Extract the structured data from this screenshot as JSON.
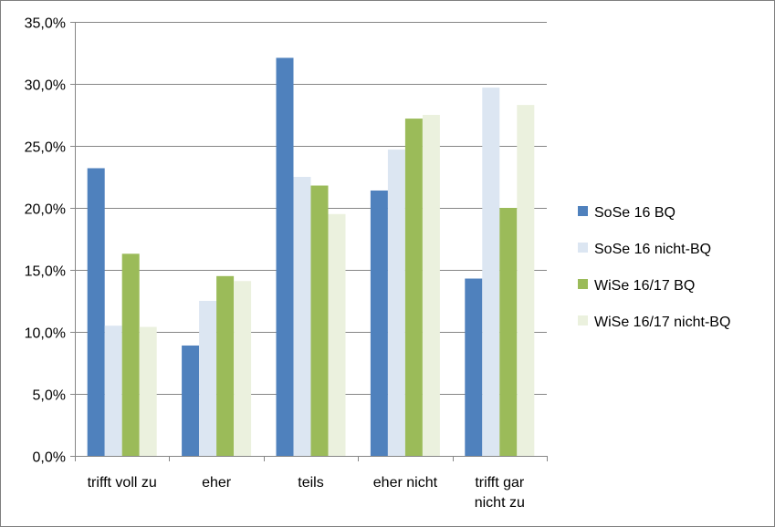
{
  "chart_data": {
    "type": "bar",
    "title": "",
    "xlabel": "",
    "ylabel": "",
    "categories": [
      "trifft voll zu",
      "eher",
      "teils",
      "eher nicht",
      "trifft gar nicht zu"
    ],
    "category_lines": [
      [
        "trifft voll zu"
      ],
      [
        "eher"
      ],
      [
        "teils"
      ],
      [
        "eher nicht"
      ],
      [
        "trifft gar",
        "nicht zu"
      ]
    ],
    "series": [
      {
        "name": "SoSe 16 BQ",
        "color": "#4f81bd",
        "values": [
          23.2,
          8.9,
          32.1,
          21.4,
          14.3
        ]
      },
      {
        "name": "SoSe 16 nicht-BQ",
        "color": "#dce6f2",
        "values": [
          10.5,
          12.5,
          22.5,
          24.7,
          29.7
        ]
      },
      {
        "name": "WiSe 16/17 BQ",
        "color": "#9bbb59",
        "values": [
          16.3,
          14.5,
          21.8,
          27.2,
          20.0
        ]
      },
      {
        "name": "WiSe 16/17 nicht-BQ",
        "color": "#ebf1de",
        "values": [
          10.4,
          14.1,
          19.5,
          27.5,
          28.3
        ]
      }
    ],
    "ylim": [
      0,
      35
    ],
    "yticks": [
      0,
      5,
      10,
      15,
      20,
      25,
      30,
      35
    ],
    "ytick_labels": [
      "0,0%",
      "5,0%",
      "10,0%",
      "15,0%",
      "20,0%",
      "25,0%",
      "30,0%",
      "35,0%"
    ],
    "unit": "%",
    "grid": true,
    "legend_position": "right"
  }
}
